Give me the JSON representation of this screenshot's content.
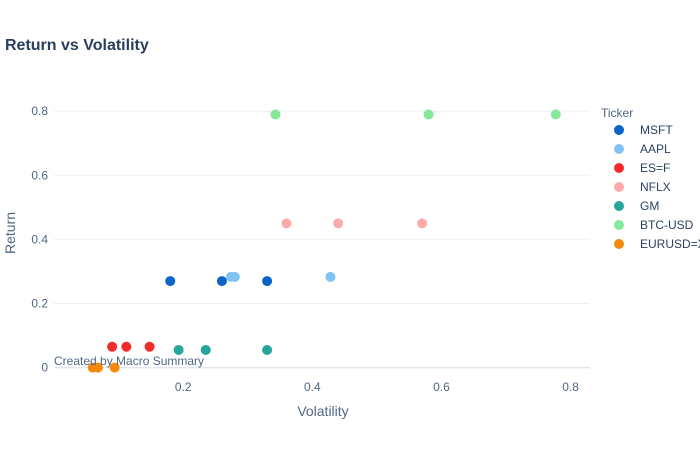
{
  "chart_data": {
    "type": "scatter",
    "title": "Return vs Volatility",
    "xlabel": "Volatility",
    "ylabel": "Return",
    "xlim": [
      0.0,
      0.83
    ],
    "ylim": [
      -0.02,
      0.86
    ],
    "x_ticks": [
      "0.2",
      "0.4",
      "0.6",
      "0.8"
    ],
    "x_tick_values": [
      0.2,
      0.4,
      0.6,
      0.8
    ],
    "y_ticks": [
      "0",
      "0.2",
      "0.4",
      "0.6",
      "0.8"
    ],
    "y_tick_values": [
      0,
      0.2,
      0.4,
      0.6,
      0.8
    ],
    "grid": true,
    "legend_title": "Ticker",
    "legend_position": "right",
    "annotation": "Created by Macro Summary",
    "series": [
      {
        "name": "MSFT",
        "color": "#0d64c8",
        "points": [
          [
            0.18,
            0.27
          ],
          [
            0.26,
            0.27
          ],
          [
            0.33,
            0.27
          ]
        ]
      },
      {
        "name": "AAPL",
        "color": "#82c3f5",
        "points": [
          [
            0.274,
            0.283
          ],
          [
            0.28,
            0.283
          ],
          [
            0.428,
            0.283
          ]
        ]
      },
      {
        "name": "ES=F",
        "color": "#f22b2b",
        "points": [
          [
            0.09,
            0.065
          ],
          [
            0.112,
            0.065
          ],
          [
            0.148,
            0.065
          ]
        ]
      },
      {
        "name": "NFLX",
        "color": "#fcaaaa",
        "points": [
          [
            0.36,
            0.45
          ],
          [
            0.44,
            0.45
          ],
          [
            0.57,
            0.45
          ]
        ]
      },
      {
        "name": "GM",
        "color": "#26a69a",
        "points": [
          [
            0.193,
            0.055
          ],
          [
            0.235,
            0.055
          ],
          [
            0.33,
            0.055
          ]
        ]
      },
      {
        "name": "BTC-USD",
        "color": "#86e89a",
        "points": [
          [
            0.343,
            0.79
          ],
          [
            0.58,
            0.79
          ],
          [
            0.777,
            0.79
          ]
        ]
      },
      {
        "name": "EURUSD=X",
        "color": "#f5890c",
        "points": [
          [
            0.06,
            0.0
          ],
          [
            0.068,
            0.0
          ],
          [
            0.094,
            0.0
          ]
        ]
      }
    ]
  }
}
